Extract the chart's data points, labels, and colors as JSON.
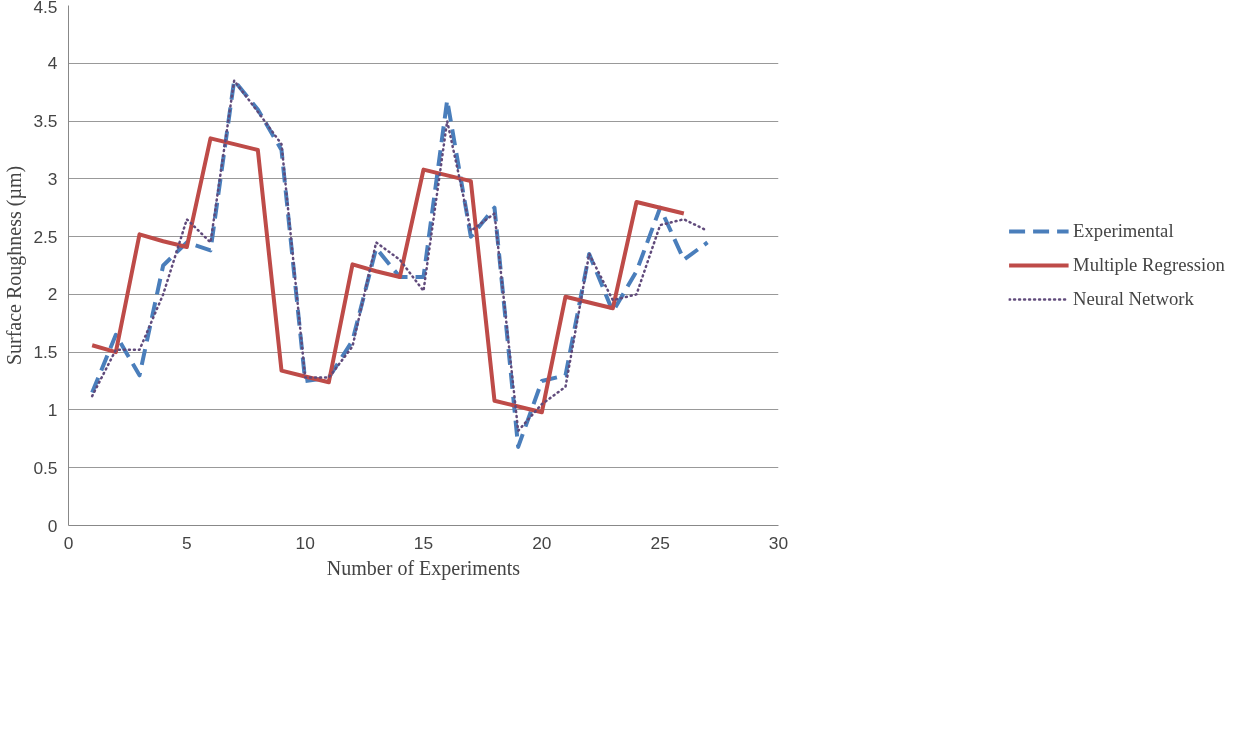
{
  "chart_data": {
    "type": "line",
    "xlabel": "Number of Experiments",
    "ylabel": "Surface Roughness (µm)",
    "x": [
      1,
      2,
      3,
      4,
      5,
      6,
      7,
      8,
      9,
      10,
      11,
      12,
      13,
      14,
      15,
      16,
      17,
      18,
      19,
      20,
      21,
      22,
      23,
      24,
      25,
      26,
      27
    ],
    "xlim": [
      0,
      30
    ],
    "xticks": [
      0,
      5,
      10,
      15,
      20,
      25,
      30
    ],
    "ylim": [
      0,
      4.5
    ],
    "yticks": [
      0,
      0.5,
      1,
      1.5,
      2,
      2.5,
      3,
      3.5,
      4,
      4.5
    ],
    "grid": "y",
    "legend": "right",
    "marker": "none",
    "series": [
      {
        "name": "Experimental",
        "color": "#4a7ebb",
        "line_style": "dashed",
        "values": [
          1.15,
          1.65,
          1.3,
          2.25,
          2.45,
          2.38,
          3.85,
          3.6,
          3.25,
          1.25,
          1.28,
          1.6,
          2.4,
          2.15,
          2.15,
          3.68,
          2.5,
          2.75,
          0.68,
          1.25,
          1.3,
          2.35,
          1.85,
          2.2,
          2.75,
          2.3,
          2.45
        ]
      },
      {
        "name": "Multiple Regression",
        "color": "#be4b48",
        "line_style": "solid",
        "x": [
          1,
          2,
          3,
          4,
          5,
          6,
          7,
          8,
          9,
          10,
          11,
          12,
          13,
          14,
          15,
          16,
          17,
          18,
          19,
          20,
          21,
          22,
          23,
          24,
          25,
          26
        ],
        "values": [
          1.56,
          1.5,
          2.52,
          2.46,
          2.41,
          3.35,
          3.3,
          3.25,
          1.34,
          1.29,
          1.24,
          2.26,
          2.2,
          2.15,
          3.08,
          3.03,
          2.98,
          1.08,
          1.03,
          0.98,
          1.98,
          1.93,
          1.88,
          2.8,
          2.75,
          2.7
        ]
      },
      {
        "name": "Neural Network",
        "color": "#604a7b",
        "line_style": "dotted",
        "values": [
          1.12,
          1.52,
          1.52,
          2.0,
          2.65,
          2.45,
          3.85,
          3.58,
          3.3,
          1.28,
          1.28,
          1.55,
          2.45,
          2.3,
          2.03,
          3.5,
          2.55,
          2.7,
          0.82,
          1.05,
          1.2,
          2.35,
          1.95,
          2.0,
          2.6,
          2.65,
          2.55
        ]
      }
    ]
  }
}
